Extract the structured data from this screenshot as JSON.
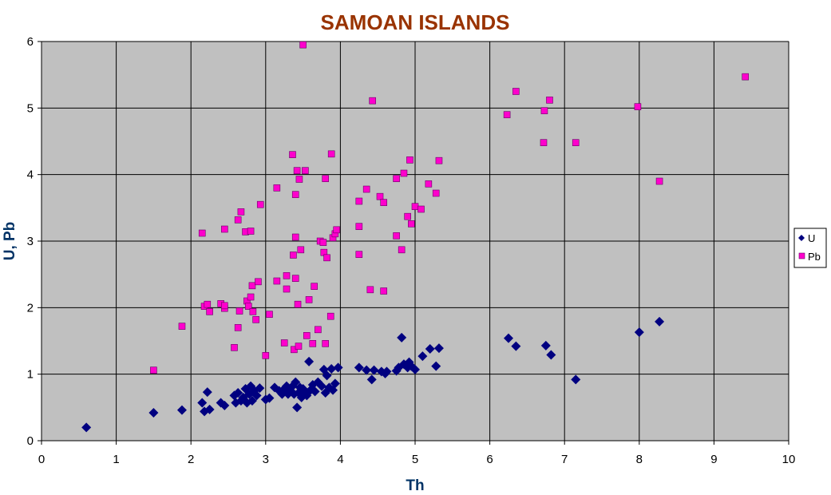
{
  "chart_data": {
    "type": "scatter",
    "title": "SAMOAN ISLANDS",
    "xlabel": "Th",
    "ylabel": "U, Pb",
    "xlim": [
      0,
      10
    ],
    "ylim": [
      0,
      6
    ],
    "xticks": [
      "0",
      "1",
      "2",
      "3",
      "4",
      "5",
      "6",
      "7",
      "8",
      "9",
      "10"
    ],
    "yticks": [
      "0",
      "1",
      "2",
      "3",
      "4",
      "5",
      "6"
    ],
    "grid": true,
    "legend_position": "right",
    "colors": {
      "title": "#993300",
      "axis_title": "#003366",
      "plot_bg": "#c0c0c0",
      "U": "#000080",
      "Pb": "#ff00cc",
      "grid": "#000000"
    },
    "series": [
      {
        "name": "U",
        "marker": "diamond",
        "points": [
          [
            0.6,
            0.2
          ],
          [
            1.5,
            0.42
          ],
          [
            1.88,
            0.46
          ],
          [
            2.15,
            0.57
          ],
          [
            2.18,
            0.44
          ],
          [
            2.22,
            0.73
          ],
          [
            2.25,
            0.47
          ],
          [
            2.4,
            0.57
          ],
          [
            2.45,
            0.53
          ],
          [
            2.58,
            0.68
          ],
          [
            2.6,
            0.57
          ],
          [
            2.63,
            0.72
          ],
          [
            2.67,
            0.6
          ],
          [
            2.7,
            0.65
          ],
          [
            2.73,
            0.78
          ],
          [
            2.75,
            0.57
          ],
          [
            2.78,
            0.7
          ],
          [
            2.8,
            0.82
          ],
          [
            2.82,
            0.6
          ],
          [
            2.85,
            0.75
          ],
          [
            2.88,
            0.68
          ],
          [
            2.92,
            0.79
          ],
          [
            3.0,
            0.62
          ],
          [
            3.05,
            0.64
          ],
          [
            3.12,
            0.8
          ],
          [
            3.18,
            0.75
          ],
          [
            3.22,
            0.7
          ],
          [
            3.25,
            0.78
          ],
          [
            3.28,
            0.82
          ],
          [
            3.3,
            0.7
          ],
          [
            3.33,
            0.75
          ],
          [
            3.36,
            0.82
          ],
          [
            3.38,
            0.7
          ],
          [
            3.4,
            0.88
          ],
          [
            3.42,
            0.5
          ],
          [
            3.44,
            0.72
          ],
          [
            3.46,
            0.8
          ],
          [
            3.48,
            0.65
          ],
          [
            3.5,
            0.78
          ],
          [
            3.52,
            0.72
          ],
          [
            3.55,
            0.68
          ],
          [
            3.58,
            1.19
          ],
          [
            3.6,
            0.76
          ],
          [
            3.63,
            0.84
          ],
          [
            3.66,
            0.74
          ],
          [
            3.7,
            0.88
          ],
          [
            3.75,
            0.82
          ],
          [
            3.78,
            1.07
          ],
          [
            3.8,
            0.72
          ],
          [
            3.82,
            0.98
          ],
          [
            3.85,
            0.8
          ],
          [
            3.88,
            1.08
          ],
          [
            3.9,
            0.76
          ],
          [
            3.93,
            0.86
          ],
          [
            3.97,
            1.1
          ],
          [
            4.25,
            1.1
          ],
          [
            4.35,
            1.06
          ],
          [
            4.42,
            0.92
          ],
          [
            4.45,
            1.06
          ],
          [
            4.55,
            1.04
          ],
          [
            4.6,
            1.01
          ],
          [
            4.62,
            1.04
          ],
          [
            4.75,
            1.05
          ],
          [
            4.78,
            1.1
          ],
          [
            4.82,
            1.55
          ],
          [
            4.85,
            1.15
          ],
          [
            4.9,
            1.1
          ],
          [
            4.92,
            1.18
          ],
          [
            4.95,
            1.12
          ],
          [
            5.0,
            1.07
          ],
          [
            5.1,
            1.27
          ],
          [
            5.2,
            1.38
          ],
          [
            5.28,
            1.12
          ],
          [
            5.32,
            1.39
          ],
          [
            6.25,
            1.54
          ],
          [
            6.35,
            1.42
          ],
          [
            6.75,
            1.43
          ],
          [
            6.82,
            1.29
          ],
          [
            7.15,
            0.92
          ],
          [
            8.0,
            1.63
          ],
          [
            8.27,
            1.79
          ]
        ]
      },
      {
        "name": "Pb",
        "marker": "square",
        "points": [
          [
            1.5,
            1.06
          ],
          [
            1.88,
            1.72
          ],
          [
            2.15,
            3.12
          ],
          [
            2.18,
            2.02
          ],
          [
            2.22,
            2.05
          ],
          [
            2.25,
            1.94
          ],
          [
            2.4,
            2.06
          ],
          [
            2.45,
            3.18
          ],
          [
            2.45,
            1.99
          ],
          [
            2.45,
            2.03
          ],
          [
            2.58,
            1.4
          ],
          [
            2.63,
            1.7
          ],
          [
            2.63,
            3.32
          ],
          [
            2.65,
            1.95
          ],
          [
            2.67,
            3.44
          ],
          [
            2.73,
            3.14
          ],
          [
            2.75,
            2.1
          ],
          [
            2.77,
            2.02
          ],
          [
            2.8,
            2.16
          ],
          [
            2.8,
            3.15
          ],
          [
            2.82,
            2.33
          ],
          [
            2.83,
            1.94
          ],
          [
            2.87,
            1.82
          ],
          [
            2.9,
            2.39
          ],
          [
            2.93,
            3.55
          ],
          [
            3.0,
            1.28
          ],
          [
            3.05,
            1.9
          ],
          [
            3.15,
            3.8
          ],
          [
            3.15,
            2.4
          ],
          [
            3.25,
            1.47
          ],
          [
            3.28,
            2.48
          ],
          [
            3.28,
            2.28
          ],
          [
            3.36,
            4.3
          ],
          [
            3.37,
            2.79
          ],
          [
            3.38,
            1.37
          ],
          [
            3.4,
            3.06
          ],
          [
            3.4,
            3.7
          ],
          [
            3.4,
            2.44
          ],
          [
            3.42,
            4.06
          ],
          [
            3.43,
            2.05
          ],
          [
            3.44,
            1.42
          ],
          [
            3.45,
            3.93
          ],
          [
            3.47,
            2.87
          ],
          [
            3.5,
            5.95
          ],
          [
            3.53,
            4.06
          ],
          [
            3.55,
            1.58
          ],
          [
            3.58,
            2.12
          ],
          [
            3.63,
            1.46
          ],
          [
            3.65,
            2.32
          ],
          [
            3.7,
            1.67
          ],
          [
            3.73,
            3.0
          ],
          [
            3.77,
            2.98
          ],
          [
            3.78,
            2.83
          ],
          [
            3.8,
            3.94
          ],
          [
            3.8,
            1.46
          ],
          [
            3.82,
            2.75
          ],
          [
            3.87,
            1.87
          ],
          [
            3.88,
            4.31
          ],
          [
            3.9,
            3.05
          ],
          [
            3.93,
            3.11
          ],
          [
            3.95,
            3.17
          ],
          [
            4.25,
            3.6
          ],
          [
            4.25,
            3.22
          ],
          [
            4.25,
            2.8
          ],
          [
            4.35,
            3.78
          ],
          [
            4.4,
            2.27
          ],
          [
            4.43,
            5.11
          ],
          [
            4.53,
            3.67
          ],
          [
            4.58,
            3.58
          ],
          [
            4.58,
            2.25
          ],
          [
            4.75,
            3.94
          ],
          [
            4.75,
            3.08
          ],
          [
            4.82,
            2.87
          ],
          [
            4.85,
            4.02
          ],
          [
            4.9,
            3.37
          ],
          [
            4.93,
            4.22
          ],
          [
            4.95,
            3.26
          ],
          [
            5.0,
            3.52
          ],
          [
            5.08,
            3.48
          ],
          [
            5.18,
            3.86
          ],
          [
            5.28,
            3.72
          ],
          [
            5.32,
            4.21
          ],
          [
            6.23,
            4.9
          ],
          [
            6.35,
            5.25
          ],
          [
            6.72,
            4.48
          ],
          [
            6.73,
            4.96
          ],
          [
            6.8,
            5.12
          ],
          [
            7.15,
            4.48
          ],
          [
            7.98,
            5.02
          ],
          [
            8.27,
            3.9
          ],
          [
            9.42,
            5.47
          ]
        ]
      }
    ]
  }
}
